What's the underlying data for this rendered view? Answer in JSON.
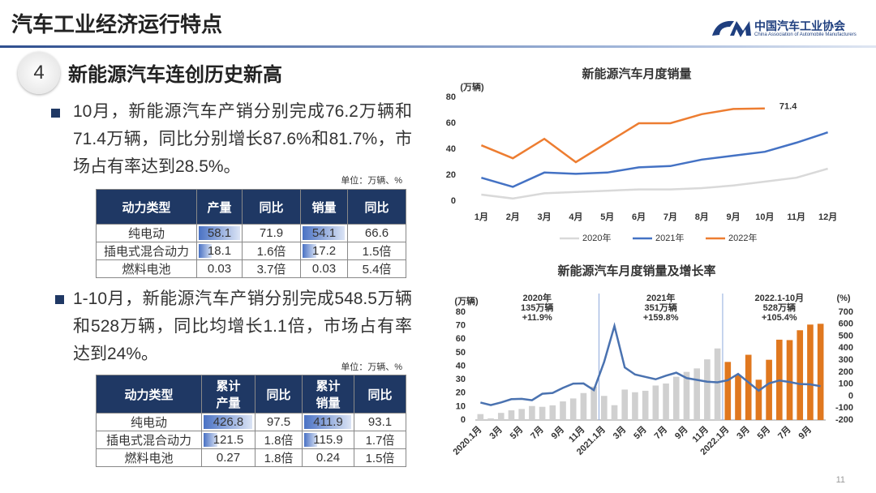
{
  "header": {
    "title": "汽车工业经济运行特点",
    "logo_name": "中国汽车工业协会",
    "logo_english": "China Association of Automobile Manufacturers"
  },
  "section": {
    "number": "4",
    "title": "新能源汽车连创历史新高"
  },
  "bullets": [
    "10月，新能源汽车产销分别完成76.2万辆和71.4万辆，同比分别增长87.6%和81.7%，市场占有率达到28.5%。",
    "1-10月，新能源汽车产销分别完成548.5万辆和528万辆，同比均增长1.1倍，市场占有率达到24%。"
  ],
  "tables": [
    {
      "unit": "单位：万辆、%",
      "headers": [
        "动力类型",
        "产量",
        "同比",
        "销量",
        "同比"
      ],
      "rows": [
        [
          "纯电动",
          58.1,
          71.9,
          54.1,
          66.6
        ],
        [
          "插电式混合动力",
          18.1,
          "1.6倍",
          17.2,
          "1.5倍"
        ],
        [
          "燃料电池",
          0.03,
          "3.7倍",
          0.03,
          "5.4倍"
        ]
      ]
    },
    {
      "unit": "单位：万辆、%",
      "headers": [
        "动力类型",
        "累计\n产量",
        "同比",
        "累计\n销量",
        "同比"
      ],
      "rows": [
        [
          "纯电动",
          426.8,
          97.5,
          411.9,
          93.1
        ],
        [
          "插电式混合动力",
          121.5,
          "1.8倍",
          115.9,
          "1.7倍"
        ],
        [
          "燃料电池",
          0.27,
          "1.8倍",
          0.24,
          "1.5倍"
        ]
      ]
    }
  ],
  "page_number": "11",
  "chart_data": [
    {
      "type": "line",
      "title": "新能源汽车月度销量",
      "y_label": "(万辆)",
      "categories": [
        "1月",
        "2月",
        "3月",
        "4月",
        "5月",
        "6月",
        "7月",
        "8月",
        "9月",
        "10月",
        "11月",
        "12月"
      ],
      "ylim": [
        0,
        80
      ],
      "yticks": [
        0,
        20,
        40,
        60,
        80
      ],
      "legend": "bottom",
      "series": [
        {
          "name": "2020年",
          "color": "#d9d9d9",
          "values": [
            5,
            2,
            6,
            7,
            8,
            9,
            9,
            10,
            12,
            15,
            18,
            25
          ]
        },
        {
          "name": "2021年",
          "color": "#4472c4",
          "values": [
            18,
            11,
            22,
            21,
            22,
            26,
            27,
            32,
            35,
            38,
            45,
            53
          ]
        },
        {
          "name": "2022年",
          "color": "#ed7d31",
          "values": [
            43,
            33,
            48,
            30,
            45,
            60,
            60,
            67,
            71,
            71.4,
            null,
            null
          ]
        }
      ]
    },
    {
      "type": "bar_line",
      "title": "新能源汽车月度销量及增长率",
      "y_label": "(万辆)",
      "y2_label": "(%)",
      "categories": [
        "2020.1月",
        null,
        "3月",
        null,
        "5月",
        null,
        "7月",
        null,
        "9月",
        null,
        "11月",
        null,
        "2021.1月",
        null,
        "3月",
        null,
        "5月",
        null,
        "7月",
        null,
        "9月",
        null,
        "11月",
        null,
        "2022.1月",
        null,
        "3月",
        null,
        "5月",
        null,
        "7月",
        null,
        "9月",
        null
      ],
      "ylim": [
        0,
        80
      ],
      "yticks": [
        0,
        10,
        20,
        30,
        40,
        50,
        60,
        70,
        80
      ],
      "y2lim": [
        -200,
        700
      ],
      "y2ticks": [
        -200,
        -100,
        0,
        100,
        200,
        300,
        400,
        500,
        600,
        700
      ],
      "annotations": [
        {
          "lines": [
            "2020年",
            "135万辆",
            "+11.9%"
          ]
        },
        {
          "lines": [
            "2021年",
            "351万辆",
            "+159.8%"
          ]
        },
        {
          "lines": [
            "2022.1-10月",
            "528万辆",
            "+105.4%"
          ]
        }
      ],
      "series": [
        {
          "type": "bar",
          "color": "#d0d0d0",
          "values": [
            4.4,
            1.2,
            5.3,
            7.2,
            8.2,
            10.4,
            9.8,
            10.9,
            13.8,
            16,
            20,
            24.8,
            17.9,
            11,
            22.6,
            20.6,
            21.7,
            25.6,
            27.1,
            32.1,
            35.7,
            38.3,
            45,
            53.1,
            null,
            null,
            null,
            null,
            null,
            null,
            null,
            null,
            null,
            null
          ]
        },
        {
          "type": "bar",
          "color": "#e0781f",
          "values": [
            null,
            null,
            null,
            null,
            null,
            null,
            null,
            null,
            null,
            null,
            null,
            null,
            null,
            null,
            null,
            null,
            null,
            null,
            null,
            null,
            null,
            null,
            null,
            null,
            43.1,
            33.4,
            48.4,
            29.9,
            44.7,
            59.6,
            59.3,
            66.6,
            70.8,
            71.4
          ]
        },
        {
          "type": "line",
          "axis": "y2",
          "color": "#4a72b0",
          "values": [
            -54,
            -75,
            -53,
            -26,
            -23,
            -35,
            19,
            26,
            68,
            104,
            105,
            50,
            285,
            585,
            239,
            180,
            160,
            140,
            170,
            195,
            150,
            135,
            120,
            115,
            132,
            185,
            115,
            45,
            106,
            130,
            117,
            100,
            98,
            82
          ]
        }
      ]
    }
  ]
}
